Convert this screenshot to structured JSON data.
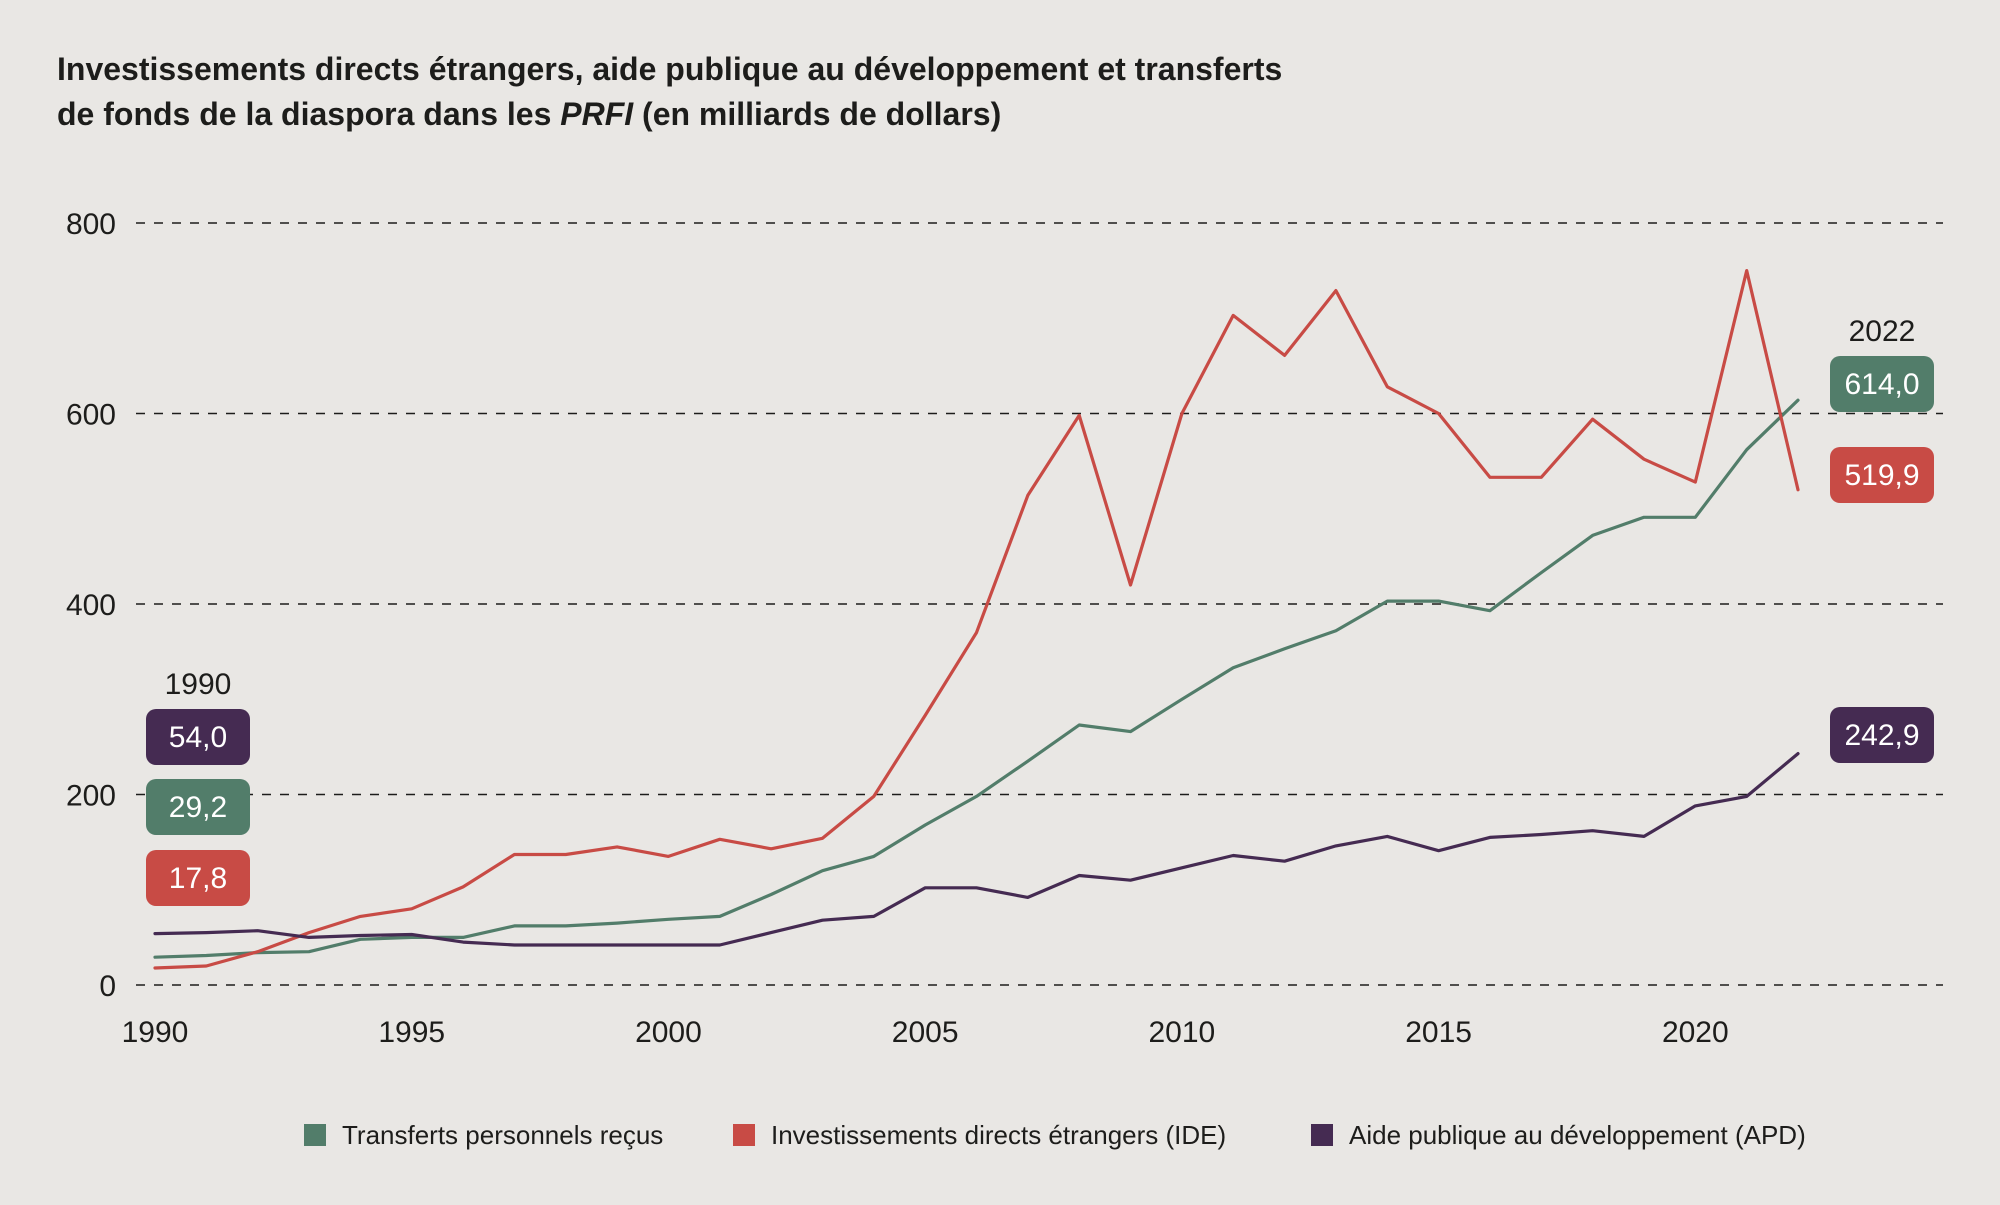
{
  "chart_data": {
    "type": "line",
    "title": {
      "line1": "Investissements directs étrangers, aide publique au développement et transferts",
      "line2_prefix": "de fonds de la diaspora dans les ",
      "line2_em": "PRFI",
      "line2_suffix": " (en milliards de dollars)"
    },
    "xlabel": "",
    "ylabel": "",
    "xlim": [
      1989.5,
      2023.5
    ],
    "ylim": [
      0,
      800
    ],
    "y_ticks": [
      "800",
      "600",
      "400",
      "200",
      "0"
    ],
    "y_tick_values": [
      800,
      600,
      400,
      200,
      0
    ],
    "x_ticks": [
      "1990",
      "1995",
      "2000",
      "2005",
      "2010",
      "2015",
      "2020"
    ],
    "x_tick_values": [
      1990,
      1995,
      2000,
      2005,
      2010,
      2015,
      2020
    ],
    "grid": true,
    "legend_position": "bottom",
    "x": [
      1990,
      1991,
      1992,
      1993,
      1994,
      1995,
      1996,
      1997,
      1998,
      1999,
      2000,
      2001,
      2002,
      2003,
      2004,
      2005,
      2006,
      2007,
      2008,
      2009,
      2010,
      2011,
      2012,
      2013,
      2014,
      2015,
      2016,
      2017,
      2018,
      2019,
      2020,
      2021,
      2022
    ],
    "series": [
      {
        "key": "transferts",
        "name": "Transferts personnels reçus",
        "color": "#527d6a",
        "values": [
          29.2,
          31,
          34,
          35,
          48,
          50,
          50,
          62,
          62,
          65,
          69,
          72,
          95,
          120,
          135,
          168,
          198,
          235,
          273,
          266,
          300,
          333,
          353,
          372,
          403,
          403,
          393,
          433,
          472,
          491,
          491,
          562,
          614.0
        ]
      },
      {
        "key": "ide",
        "name": "Investissements directs étrangers (IDE)",
        "color": "#c84b45",
        "values": [
          17.8,
          20,
          35,
          55,
          72,
          80,
          103,
          137,
          137,
          145,
          135,
          153,
          143,
          154,
          198,
          283,
          370,
          514,
          598,
          420,
          600,
          703,
          661,
          729,
          628,
          600,
          533,
          533,
          594,
          552,
          528,
          750,
          519.9
        ]
      },
      {
        "key": "apd",
        "name": "Aide publique au développement (APD)",
        "color": "#452b52",
        "values": [
          54.0,
          55,
          57,
          50,
          52,
          53,
          45,
          42,
          42,
          42,
          42,
          42,
          55,
          68,
          72,
          102,
          102,
          92,
          115,
          110,
          123,
          136,
          130,
          146,
          156,
          141,
          155,
          158,
          162,
          156,
          188,
          198,
          242.9
        ]
      }
    ],
    "start_badges": {
      "year": "1990",
      "apd": "54,0",
      "transferts": "29,2",
      "ide": "17,8"
    },
    "end_badges": {
      "year": "2022",
      "transferts": "614,0",
      "ide": "519,9",
      "apd": "242,9"
    }
  }
}
